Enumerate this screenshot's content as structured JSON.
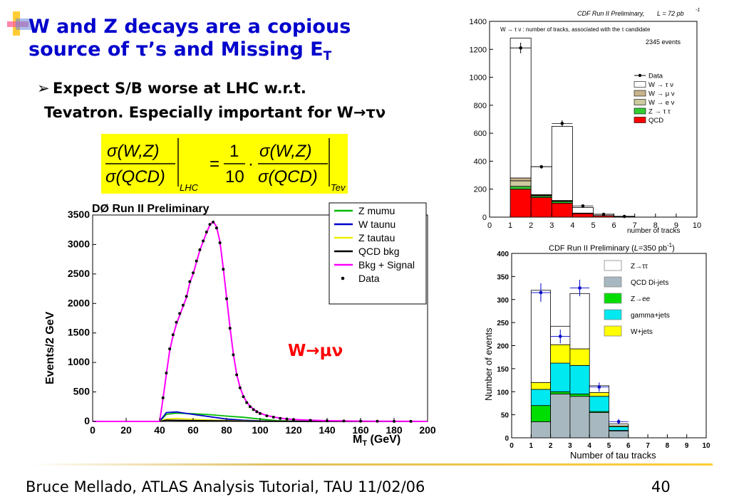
{
  "slide": {
    "title_line1": "W and Z decays are a copious",
    "title_line2": "source of τ’s and Missing E",
    "title_sub": "T",
    "bullet_line1": "Expect S/B worse at LHC w.r.t.",
    "bullet_line2": "Tevatron. Especially important for W→τν",
    "bullet_marker": "➢",
    "footer": "Bruce Mellado, ATLAS Analysis Tutorial, TAU 11/02/06",
    "page_number": "40",
    "w_mu_nu_label": "W→μν",
    "accent_color": "#0000cc",
    "formula": {
      "lhs_num": "σ(W,Z)",
      "lhs_den": "σ(QCD)",
      "lhs_sub": "LHC",
      "equals": "=",
      "one": "1",
      "ten": "10",
      "dot": "·",
      "rhs_num": "σ(W,Z)",
      "rhs_den": "σ(QCD)",
      "rhs_sub": "Tev"
    }
  },
  "chart_data": [
    {
      "type": "bar",
      "header": "CDF Run II Preliminary,",
      "lumi": "L = 72 pb",
      "lumi_sup": "-1",
      "inner_title": "W → τ ν : number of tracks, associated with the    τ  candidate",
      "events_note": "2345 events",
      "xlabel": "number of tracks",
      "ylabel": "",
      "xlim": [
        0,
        10
      ],
      "ylim": [
        0,
        1400
      ],
      "x_ticks": [
        "0",
        "1",
        "2",
        "3",
        "4",
        "5",
        "6",
        "7",
        "8",
        "9",
        "10"
      ],
      "y_ticks": [
        "0",
        "200",
        "400",
        "600",
        "800",
        "1000",
        "1200",
        "1400"
      ],
      "bins": [
        [
          1,
          2
        ],
        [
          2,
          3
        ],
        [
          3,
          4
        ],
        [
          4,
          5
        ],
        [
          5,
          6
        ],
        [
          6,
          7
        ]
      ],
      "stack": [
        {
          "name": "QCD",
          "color": "#ff0000",
          "values": [
            200,
            140,
            100,
            25,
            10,
            3
          ]
        },
        {
          "name": "Z → τ τ",
          "color": "#33cc33",
          "values": [
            20,
            10,
            12,
            2,
            1,
            0
          ]
        },
        {
          "name": "W → e ν",
          "color": "#ccc8a0",
          "values": [
            40,
            5,
            3,
            1,
            0,
            0
          ]
        },
        {
          "name": "W → μ ν",
          "color": "#c8b48c",
          "values": [
            20,
            6,
            4,
            1,
            0,
            0
          ]
        },
        {
          "name": "W → τ ν",
          "color": "#ffffff",
          "values": [
            1000,
            200,
            530,
            40,
            10,
            3
          ]
        }
      ],
      "data": {
        "name": "Data",
        "x": [
          1.5,
          2.5,
          3.5,
          4.5,
          5.5,
          6.5
        ],
        "y": [
          1210,
          360,
          670,
          80,
          20,
          5
        ]
      }
    },
    {
      "type": "line",
      "title": "DØ Run II Preliminary",
      "xlabel": "M",
      "xlabel_sub": "T",
      "xlabel_unit": " (GeV)",
      "ylabel": "Events/2 GeV",
      "xlim": [
        0,
        200
      ],
      "ylim": [
        0,
        3500
      ],
      "x_ticks": [
        "0",
        "20",
        "40",
        "60",
        "80",
        "100",
        "120",
        "140",
        "160",
        "180",
        "200"
      ],
      "y_ticks": [
        "0",
        "500",
        "1000",
        "1500",
        "2000",
        "2500",
        "3000",
        "3500"
      ],
      "series": [
        {
          "name": "Z mumu",
          "color": "#00bb00",
          "x": [
            0,
            40,
            44,
            50,
            60,
            70,
            80,
            90,
            100,
            110,
            120,
            200
          ],
          "y": [
            0,
            0,
            120,
            140,
            130,
            115,
            90,
            70,
            40,
            15,
            5,
            0
          ]
        },
        {
          "name": "W taunu",
          "color": "#0000cc",
          "x": [
            0,
            40,
            44,
            50,
            60,
            70,
            80,
            90,
            100,
            120,
            200
          ],
          "y": [
            0,
            0,
            150,
            160,
            120,
            80,
            40,
            20,
            10,
            3,
            0
          ]
        },
        {
          "name": "Z tautau",
          "color": "#eeee00",
          "x": [
            0,
            40,
            44,
            50,
            60,
            80,
            100,
            200
          ],
          "y": [
            0,
            0,
            40,
            50,
            35,
            15,
            5,
            0
          ]
        },
        {
          "name": "QCD bkg",
          "color": "#000000",
          "x": [
            0,
            40,
            44,
            60,
            80,
            100,
            200
          ],
          "y": [
            0,
            0,
            20,
            15,
            8,
            3,
            0
          ]
        },
        {
          "name": "Bkg + Signal",
          "color": "#ff00ff",
          "x": [
            0,
            40,
            42,
            44,
            46,
            48,
            50,
            52,
            54,
            56,
            58,
            60,
            62,
            64,
            66,
            68,
            70,
            72,
            74,
            76,
            78,
            80,
            82,
            84,
            86,
            88,
            90,
            92,
            94,
            96,
            98,
            100,
            104,
            108,
            112,
            116,
            120,
            130,
            140,
            150,
            160,
            170,
            180,
            190,
            200
          ],
          "y": [
            0,
            0,
            380,
            800,
            1200,
            1450,
            1650,
            1800,
            1950,
            2100,
            2350,
            2500,
            2700,
            2900,
            3050,
            3200,
            3330,
            3390,
            3300,
            3050,
            2600,
            2100,
            1600,
            1150,
            800,
            580,
            430,
            330,
            260,
            210,
            170,
            140,
            100,
            75,
            55,
            42,
            32,
            20,
            12,
            8,
            5,
            3,
            2,
            1,
            0
          ]
        },
        {
          "name": "Data",
          "color": "#000000",
          "x": [
            42,
            44,
            46,
            48,
            50,
            52,
            54,
            56,
            58,
            60,
            62,
            64,
            66,
            68,
            70,
            72,
            74,
            76,
            78,
            80,
            82,
            84,
            86,
            88,
            90,
            92,
            94,
            96,
            98,
            100,
            104,
            108,
            112,
            116,
            120,
            130,
            140,
            150,
            160,
            170,
            180,
            190
          ],
          "y": [
            400,
            820,
            1230,
            1470,
            1680,
            1830,
            1970,
            2120,
            2370,
            2520,
            2720,
            2910,
            3060,
            3210,
            3340,
            3380,
            3280,
            3030,
            2580,
            2080,
            1580,
            1130,
            790,
            570,
            420,
            320,
            250,
            200,
            165,
            135,
            95,
            72,
            52,
            40,
            30,
            18,
            11,
            7,
            4,
            3,
            2,
            1
          ]
        }
      ]
    },
    {
      "type": "bar",
      "title": "CDF Run II Preliminary  (",
      "lumi_symbol": "L",
      "lumi_rest": "=350 pb",
      "lumi_sup": "-1",
      "lumi_close": ")",
      "xlabel": "Number of tau tracks",
      "ylabel": "Number of events",
      "xlim": [
        0,
        10
      ],
      "ylim": [
        0,
        400
      ],
      "x_ticks": [
        "0",
        "1",
        "2",
        "3",
        "4",
        "5",
        "6",
        "7",
        "8",
        "9",
        "10"
      ],
      "y_ticks": [
        "0",
        "50",
        "100",
        "150",
        "200",
        "250",
        "300",
        "350",
        "400"
      ],
      "bins": [
        [
          1,
          2
        ],
        [
          2,
          3
        ],
        [
          3,
          4
        ],
        [
          4,
          5
        ],
        [
          5,
          6
        ]
      ],
      "stack": [
        {
          "name": "QCD Di-jets",
          "color": "#a8b8c0",
          "values": [
            35,
            95,
            90,
            55,
            15
          ]
        },
        {
          "name": "Z→ee",
          "color": "#00dd00",
          "values": [
            35,
            5,
            5,
            2,
            1
          ]
        },
        {
          "name": "gamma+jets",
          "color": "#00e8f0",
          "values": [
            35,
            62,
            62,
            33,
            8
          ]
        },
        {
          "name": "W+jets",
          "color": "#ffff00",
          "values": [
            15,
            40,
            36,
            8,
            2
          ]
        },
        {
          "name": "Z→ττ",
          "color": "#ffffff",
          "values": [
            200,
            40,
            120,
            15,
            4
          ]
        }
      ],
      "data": {
        "name": "Data",
        "x": [
          1.5,
          2.5,
          3.5,
          4.5,
          5.5
        ],
        "y": [
          315,
          220,
          325,
          110,
          35
        ],
        "err": [
          20,
          15,
          18,
          10,
          6
        ],
        "color": "#0000cc"
      }
    }
  ]
}
